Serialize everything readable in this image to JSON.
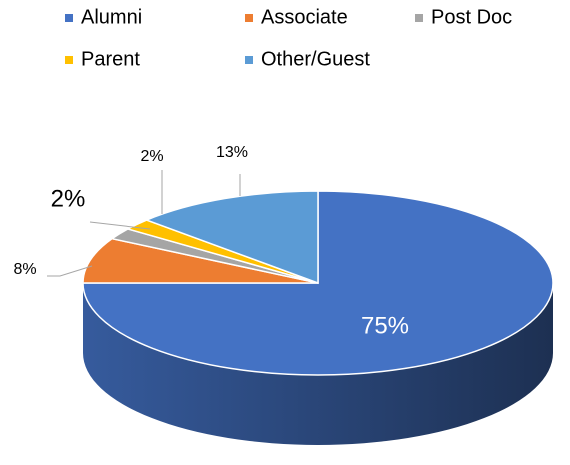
{
  "chart_data": {
    "type": "pie",
    "categories": [
      "Alumni",
      "Associate",
      "Post Doc",
      "Parent",
      "Other/Guest"
    ],
    "values": [
      75,
      8,
      2,
      2,
      13
    ],
    "value_labels": [
      "75%",
      "8%",
      "2%",
      "2%",
      "13%"
    ],
    "colors": [
      "#4472c4",
      "#ed7d31",
      "#a5a5a5",
      "#ffc000",
      "#5b9bd5"
    ],
    "legend": "top"
  }
}
